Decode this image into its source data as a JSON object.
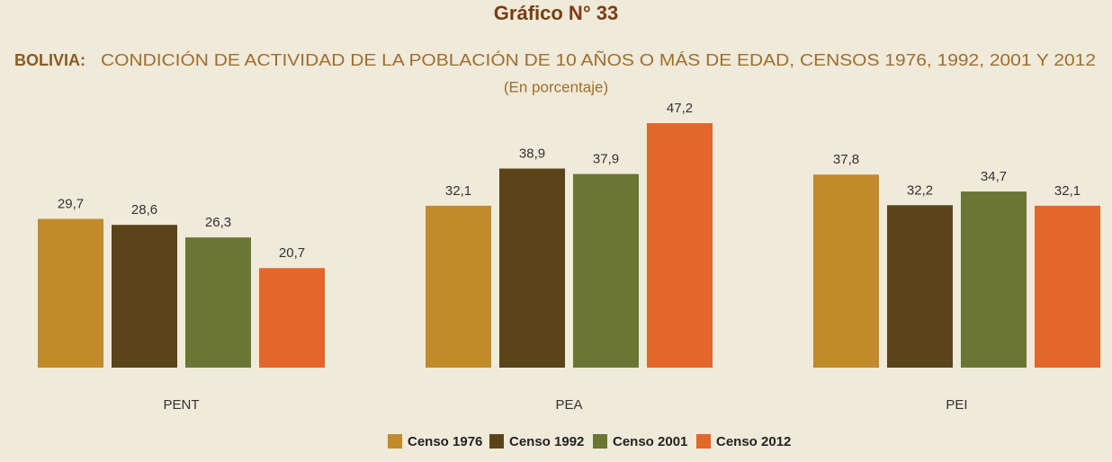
{
  "chart_data": {
    "type": "bar",
    "title": "Gráfico N° 33",
    "subtitle_lead": "BOLIVIA:",
    "subtitle": "CONDICIÓN DE ACTIVIDAD DE LA POBLACIÓN DE 10 AÑOS O MÁS DE EDAD, CENSOS 1976, 1992, 2001 Y 2012",
    "unit_note": "(En porcentaje)",
    "categories": [
      "PENT",
      "PEA",
      "PEI"
    ],
    "series": [
      {
        "name": "Censo 1976",
        "color": "#c18a2b",
        "values": [
          29.7,
          32.1,
          37.8
        ],
        "value_labels": [
          "29,7",
          "32,1",
          "37,8"
        ]
      },
      {
        "name": "Censo 1992",
        "color": "#5b4419",
        "values": [
          28.6,
          38.9,
          32.2
        ],
        "value_labels": [
          "28,6",
          "38,9",
          "32,2"
        ]
      },
      {
        "name": "Censo 2001",
        "color": "#6b7534",
        "values": [
          26.3,
          37.9,
          34.7
        ],
        "value_labels": [
          "26,3",
          "37,9",
          "34,7"
        ]
      },
      {
        "name": "Censo 2012",
        "color": "#e3662a",
        "values": [
          20.7,
          47.2,
          32.1
        ],
        "value_labels": [
          "20,7",
          "47,2",
          "32,1"
        ]
      }
    ],
    "ylim": [
      2.5,
      50
    ]
  }
}
